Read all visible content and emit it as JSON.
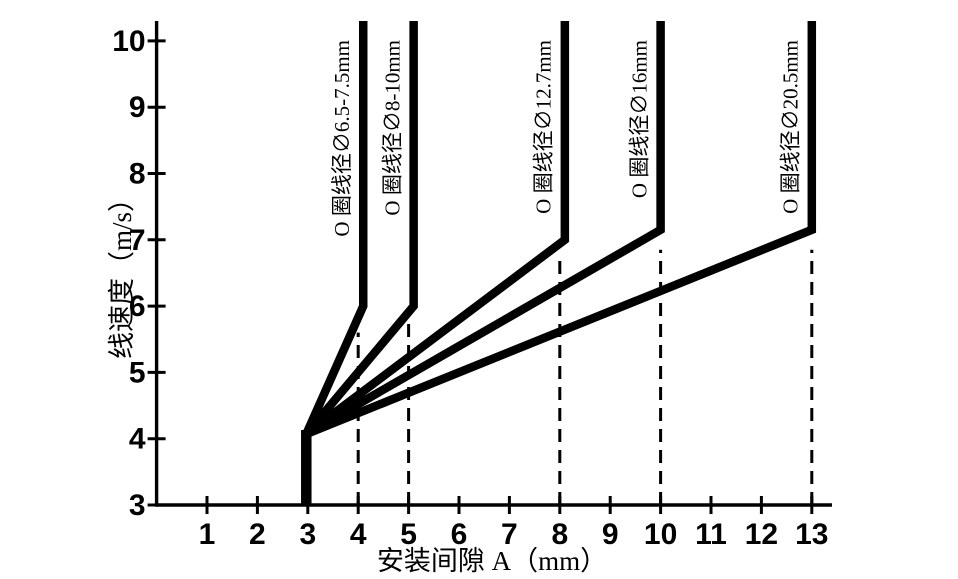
{
  "chart_data": {
    "type": "line",
    "xlabel": "安装间隙 A（mm）",
    "ylabel": "线速度（m/s）",
    "xlim": [
      0,
      13.4
    ],
    "ylim": [
      3,
      10.3
    ],
    "x_ticks": [
      1,
      2,
      3,
      4,
      5,
      6,
      7,
      8,
      9,
      10,
      11,
      12,
      13
    ],
    "y_ticks": [
      3,
      4,
      5,
      6,
      7,
      8,
      9,
      10
    ],
    "grid": "off",
    "legend_position": "rotated-labels-beside-curves",
    "series": [
      {
        "name": "O 圈线径∅6.5-7.5mm",
        "points": [
          [
            2.97,
            3
          ],
          [
            2.97,
            4.07
          ],
          [
            4.1,
            6.0
          ],
          [
            4.1,
            10.3
          ]
        ]
      },
      {
        "name": "O 圈线径∅8-10mm",
        "points": [
          [
            2.97,
            3
          ],
          [
            2.97,
            4.07
          ],
          [
            5.1,
            6.0
          ],
          [
            5.1,
            10.3
          ]
        ]
      },
      {
        "name": "O 圈线径∅12.7mm",
        "points": [
          [
            2.97,
            3
          ],
          [
            2.97,
            4.07
          ],
          [
            8.1,
            7.0
          ],
          [
            8.1,
            10.3
          ]
        ]
      },
      {
        "name": "O 圈线径∅16mm",
        "points": [
          [
            2.97,
            3
          ],
          [
            2.97,
            4.07
          ],
          [
            10.0,
            7.15
          ],
          [
            10.0,
            10.3
          ]
        ]
      },
      {
        "name": "O 圈线径∅20.5mm",
        "points": [
          [
            2.97,
            3
          ],
          [
            2.97,
            4.07
          ],
          [
            13.0,
            7.15
          ],
          [
            13.0,
            10.3
          ]
        ]
      }
    ],
    "guide_lines": [
      {
        "x": 4,
        "y_top": 5.6
      },
      {
        "x": 5,
        "y_top": 5.8
      },
      {
        "x": 8,
        "y_top": 6.8
      },
      {
        "x": 10,
        "y_top": 6.85
      },
      {
        "x": 13,
        "y_top": 6.85
      }
    ],
    "colors": {
      "line": "#000000",
      "background": "#ffffff"
    }
  }
}
